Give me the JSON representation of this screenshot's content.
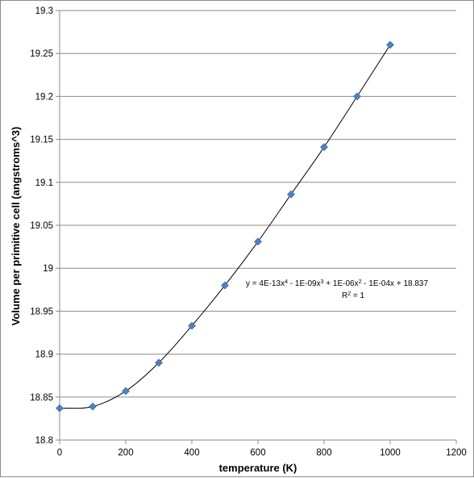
{
  "chart_data": {
    "type": "scatter",
    "xlabel": "temperature (K)",
    "ylabel": "Volume per primitive cell (angstroms^3)",
    "xlim": [
      0,
      1200
    ],
    "ylim": [
      18.8,
      19.3
    ],
    "x_ticks": [
      "0",
      "200",
      "400",
      "600",
      "800",
      "1000",
      "1200"
    ],
    "y_ticks": [
      "18.8",
      "18.85",
      "18.9",
      "18.95",
      "19",
      "19.05",
      "19.1",
      "19.15",
      "19.2",
      "19.25",
      "19.3"
    ],
    "grid": "horizontal",
    "marker": "diamond",
    "marker_color": "#4f81bd",
    "trendline_color": "#000000",
    "points": [
      {
        "x": 0,
        "y": 18.837
      },
      {
        "x": 100,
        "y": 18.839
      },
      {
        "x": 200,
        "y": 18.857
      },
      {
        "x": 300,
        "y": 18.89
      },
      {
        "x": 400,
        "y": 18.933
      },
      {
        "x": 500,
        "y": 18.98
      },
      {
        "x": 600,
        "y": 19.031
      },
      {
        "x": 700,
        "y": 19.086
      },
      {
        "x": 800,
        "y": 19.141
      },
      {
        "x": 900,
        "y": 19.2
      },
      {
        "x": 1000,
        "y": 19.26
      }
    ],
    "trendline": {
      "type": "polynomial",
      "order": 4,
      "equation_parts": [
        "y = 4E-13x",
        "4",
        " - 1E-09x",
        "3",
        " + 1E-06x",
        "2",
        " - 1E-04x + 18.837"
      ],
      "r2_parts": [
        "R",
        "2",
        " = 1"
      ]
    }
  }
}
